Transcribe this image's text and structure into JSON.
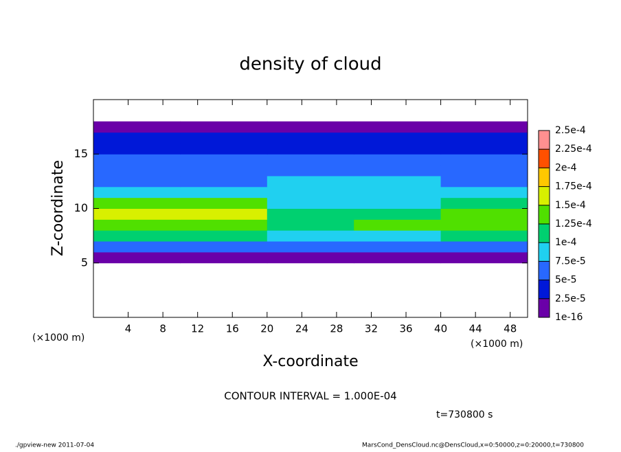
{
  "chart_data": {
    "type": "heatmap",
    "title": "density of cloud",
    "x_label": "X-coordinate",
    "y_label": "Z-coordinate",
    "x_unit_left": "(×1000 m)",
    "x_unit_right": "(×1000 m)",
    "xlim": [
      0,
      50
    ],
    "ylim": [
      0,
      20
    ],
    "xticks": [
      4,
      8,
      12,
      16,
      20,
      24,
      28,
      32,
      36,
      40,
      44,
      48
    ],
    "yticks": [
      5,
      10,
      15
    ],
    "x_edges": [
      0,
      10,
      20,
      30,
      40,
      50
    ],
    "z_edges": [
      5,
      6,
      7,
      8,
      9,
      10,
      11,
      12,
      13,
      14,
      15,
      16,
      17,
      18
    ],
    "values": [
      [
        2e-05,
        2e-05,
        2e-05,
        2e-05,
        2e-05
      ],
      [
        6e-05,
        6e-05,
        5.5e-05,
        5e-05,
        6e-05
      ],
      [
        0.000105,
        0.000105,
        9e-05,
        9e-05,
        0.0001
      ],
      [
        0.000145,
        0.000135,
        0.000115,
        0.000125,
        0.00013
      ],
      [
        0.00016,
        0.00015,
        0.00011,
        0.00012,
        0.00013
      ],
      [
        0.000135,
        0.00013,
        9e-05,
        9.5e-05,
        0.00011
      ],
      [
        9e-05,
        8.5e-05,
        8e-05,
        8e-05,
        9e-05
      ],
      [
        7e-05,
        7e-05,
        7.5e-05,
        7.5e-05,
        7e-05
      ],
      [
        6e-05,
        6e-05,
        6.5e-05,
        6.5e-05,
        6e-05
      ],
      [
        5.5e-05,
        5.5e-05,
        5.5e-05,
        5.5e-05,
        5.5e-05
      ],
      [
        4.5e-05,
        4.5e-05,
        4.5e-05,
        4.5e-05,
        4.5e-05
      ],
      [
        2.5e-05,
        2.5e-05,
        2.5e-05,
        2.5e-05,
        2.5e-05
      ],
      [
        1e-05,
        1e-05,
        1e-05,
        1e-05,
        1e-05
      ]
    ],
    "levels": [
      {
        "value": 1e-16,
        "label": "1e-16"
      },
      {
        "value": 2.5e-05,
        "label": "2.5e-5"
      },
      {
        "value": 5e-05,
        "label": "5e-5"
      },
      {
        "value": 7.5e-05,
        "label": "7.5e-5"
      },
      {
        "value": 0.0001,
        "label": "1e-4"
      },
      {
        "value": 0.000125,
        "label": "1.25e-4"
      },
      {
        "value": 0.00015,
        "label": "1.5e-4"
      },
      {
        "value": 0.000175,
        "label": "1.75e-4"
      },
      {
        "value": 0.0002,
        "label": "2e-4"
      },
      {
        "value": 0.000225,
        "label": "2.25e-4"
      },
      {
        "value": 0.00025,
        "label": "2.5e-4"
      }
    ],
    "colors": [
      "#6a00a8",
      "#0018d8",
      "#2868ff",
      "#20d0f0",
      "#00d070",
      "#50e000",
      "#d8f000",
      "#ffc800",
      "#ff5000",
      "#ff9090"
    ],
    "contour_note": "CONTOUR INTERVAL = 1.000E-04",
    "time_note": "t=730800 s",
    "footer_left": "./gpview-new   2011-07-04",
    "footer_right": "MarsCond_DensCloud.nc@DensCloud,x=0:50000,z=0:20000,t=730800"
  }
}
